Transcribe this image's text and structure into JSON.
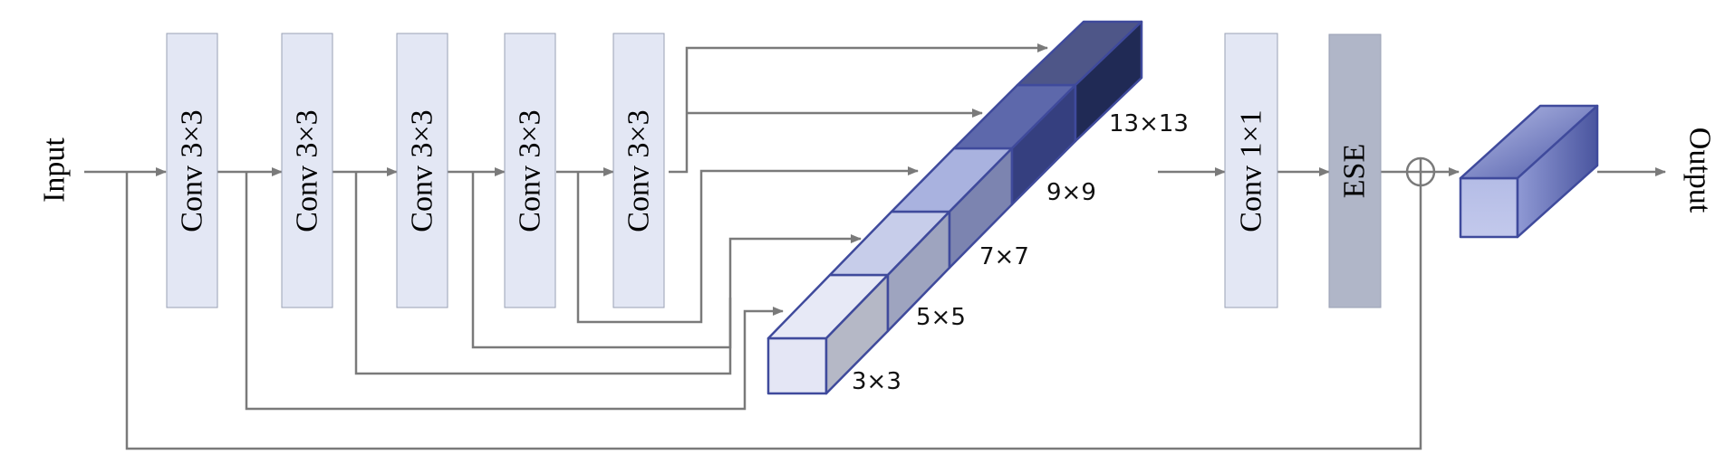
{
  "diagram": {
    "input_label": "Input",
    "output_label": "Output",
    "conv_blocks": [
      "Conv 3×3",
      "Conv 3×3",
      "Conv 3×3",
      "Conv 3×3",
      "Conv 3×3"
    ],
    "conv1x1_label": "Conv 1×1",
    "ese_label": "ESE",
    "feature_sizes": [
      "3×3",
      "5×5",
      "7×7",
      "9×9",
      "13×13"
    ],
    "colors": {
      "conv_fill": "#e3e7f4",
      "ese_fill": "#b0b6c8",
      "arrow": "#7a7a7a",
      "cube_edge": "#3f4a9c"
    }
  }
}
